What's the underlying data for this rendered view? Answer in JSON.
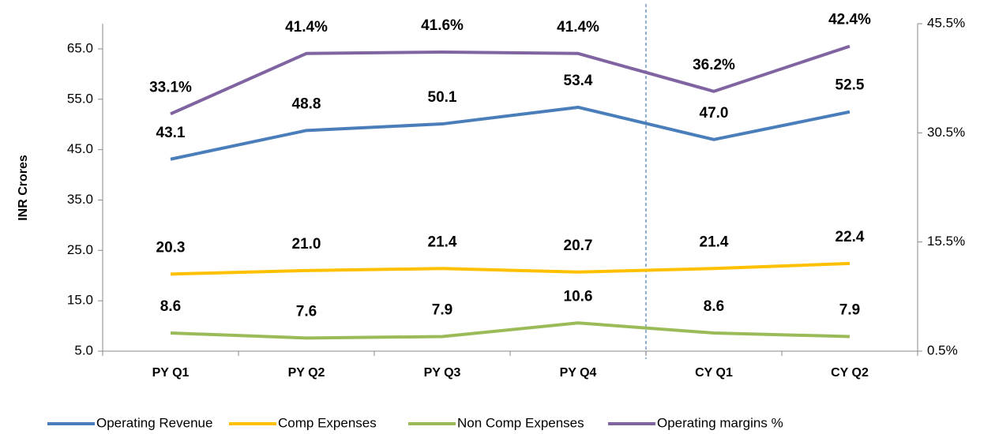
{
  "chart_data": {
    "type": "line",
    "y_axis_label": "INR Crores",
    "categories": [
      "PY Q1",
      "PY Q2",
      "PY Q3",
      "PY Q4",
      "CY Q1",
      "CY Q2"
    ],
    "series": [
      {
        "name": "Operating Revenue",
        "color": "#4a7ebb",
        "values": [
          43.1,
          48.8,
          50.1,
          53.4,
          47.0,
          52.5
        ],
        "value_labels": [
          "43.1",
          "48.8",
          "50.1",
          "53.4",
          "47.0",
          "52.5"
        ]
      },
      {
        "name": "Comp Expenses",
        "color": "#ffc000",
        "values": [
          20.3,
          21.0,
          21.4,
          20.7,
          21.4,
          22.4
        ],
        "value_labels": [
          "20.3",
          "21.0",
          "21.4",
          "20.7",
          "21.4",
          "22.4"
        ]
      },
      {
        "name": "Non Comp Expenses",
        "color": "#9bbb59",
        "values": [
          8.6,
          7.6,
          7.9,
          10.6,
          8.6,
          7.9
        ],
        "value_labels": [
          "8.6",
          "7.6",
          "7.9",
          "10.6",
          "8.6",
          "7.9"
        ]
      },
      {
        "name": "Operating margins %",
        "color": "#8064a2",
        "axis": "y2",
        "values": [
          33.1,
          41.4,
          41.6,
          41.4,
          36.2,
          42.4
        ],
        "value_labels": [
          "33.1%",
          "41.4%",
          "41.6%",
          "41.4%",
          "36.2%",
          "42.4%"
        ]
      }
    ],
    "ylim": [
      5,
      70
    ],
    "yticks": [
      {
        "value": 5,
        "label": "5.0"
      },
      {
        "value": 15,
        "label": "15.0"
      },
      {
        "value": 25,
        "label": "25.0"
      },
      {
        "value": 35,
        "label": "35.0"
      },
      {
        "value": 45,
        "label": "45.0"
      },
      {
        "value": 55,
        "label": "55.0"
      },
      {
        "value": 65,
        "label": "65.0"
      }
    ],
    "y2lim": [
      0.5,
      45.5
    ],
    "y2ticks": [
      {
        "value": 0.5,
        "label": "0.5%"
      },
      {
        "value": 15.5,
        "label": "15.5%"
      },
      {
        "value": 30.5,
        "label": "30.5%"
      },
      {
        "value": 45.5,
        "label": "45.5%"
      }
    ],
    "legend": "bottom"
  }
}
